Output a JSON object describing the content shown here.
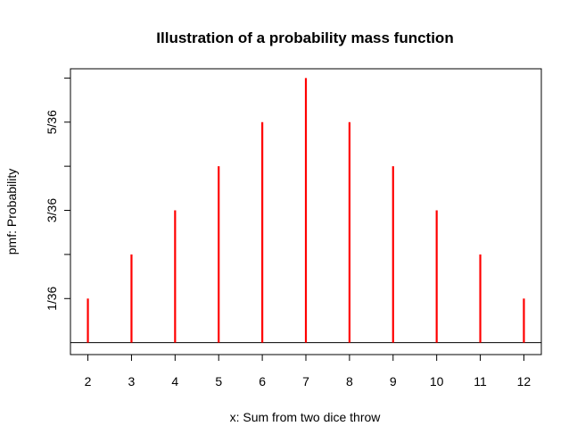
{
  "chart_data": {
    "type": "bar",
    "style": "spike",
    "title": "Illustration of a probability mass function",
    "xlabel": "x: Sum from two dice throw",
    "ylabel": "pmf: Probability",
    "x": [
      2,
      3,
      4,
      5,
      6,
      7,
      8,
      9,
      10,
      11,
      12
    ],
    "values": [
      0.027778,
      0.055556,
      0.083333,
      0.111111,
      0.138889,
      0.166667,
      0.138889,
      0.111111,
      0.083333,
      0.055556,
      0.027778
    ],
    "xlim": [
      1.6,
      12.4
    ],
    "ylim": [
      -0.0075,
      0.1725
    ],
    "xticks": [
      {
        "value": 2,
        "label": "2"
      },
      {
        "value": 3,
        "label": "3"
      },
      {
        "value": 4,
        "label": "4"
      },
      {
        "value": 5,
        "label": "5"
      },
      {
        "value": 6,
        "label": "6"
      },
      {
        "value": 7,
        "label": "7"
      },
      {
        "value": 8,
        "label": "8"
      },
      {
        "value": 9,
        "label": "9"
      },
      {
        "value": 10,
        "label": "10"
      },
      {
        "value": 11,
        "label": "11"
      },
      {
        "value": 12,
        "label": "12"
      }
    ],
    "yticks": [
      {
        "value": 0.027778,
        "label": "1/36"
      },
      {
        "value": 0.055556,
        "label": ""
      },
      {
        "value": 0.083333,
        "label": "3/36"
      },
      {
        "value": 0.111111,
        "label": ""
      },
      {
        "value": 0.138889,
        "label": "5/36"
      },
      {
        "value": 0.166667,
        "label": ""
      }
    ],
    "hline": 0,
    "grid": false,
    "series_color": "#ff0000",
    "axis_color": "#000000"
  }
}
